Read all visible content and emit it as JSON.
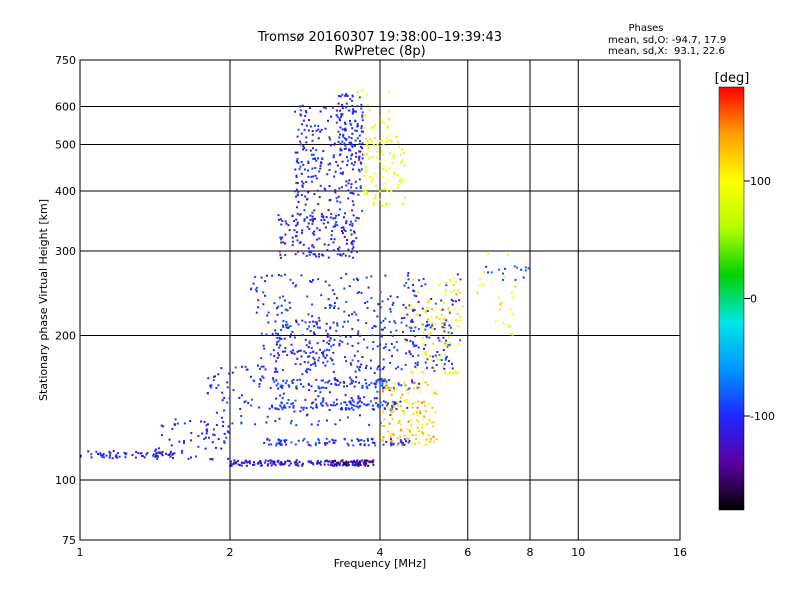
{
  "title": {
    "line1": "Tromsø 20160307 19:38:00–19:39:43",
    "line2": "RwPretec (8p)"
  },
  "phases_box": {
    "heading": "Phases",
    "line_o": "mean, sd,O: -94.7, 17.9",
    "line_x": "mean, sd,X:  93.1, 22.6"
  },
  "colorbar": {
    "label": "[deg]",
    "ticks": [
      {
        "value": 100,
        "label": "100"
      },
      {
        "value": 0,
        "label": "0"
      },
      {
        "value": -100,
        "label": "-100"
      }
    ],
    "range": [
      -180,
      180
    ],
    "colors": [
      "#000000",
      "#5a00a0",
      "#1e28ff",
      "#0096ff",
      "#00e6e6",
      "#00d200",
      "#b4ff00",
      "#ffff00",
      "#ffa000",
      "#ff0000"
    ]
  },
  "chart_data": {
    "type": "scatter",
    "xlabel": "Frequency [MHz]",
    "ylabel": "Stationary phase Virtual Height [km]",
    "x_scale": "log",
    "y_scale": "log",
    "xlim": [
      1,
      16
    ],
    "ylim": [
      75,
      750
    ],
    "x_ticks": [
      {
        "value": 1,
        "label": "1"
      },
      {
        "value": 2,
        "label": "2"
      },
      {
        "value": 4,
        "label": "4"
      },
      {
        "value": 6,
        "label": "6"
      },
      {
        "value": 8,
        "label": "8"
      },
      {
        "value": 10,
        "label": "10"
      },
      {
        "value": 16,
        "label": "16"
      }
    ],
    "y_ticks": [
      {
        "value": 75,
        "label": "75"
      },
      {
        "value": 100,
        "label": "100"
      },
      {
        "value": 200,
        "label": "200"
      },
      {
        "value": 300,
        "label": "300"
      },
      {
        "value": 400,
        "label": "400"
      },
      {
        "value": 500,
        "label": "500"
      },
      {
        "value": 600,
        "label": "600"
      },
      {
        "value": 750,
        "label": "750"
      }
    ],
    "grid": true,
    "color_variable": "phase [deg]",
    "clusters": [
      {
        "f": [
          1.0,
          1.55
        ],
        "h": [
          111,
          115
        ],
        "phase": -110,
        "n": 60
      },
      {
        "f": [
          1.4,
          2.0
        ],
        "h": [
          110,
          135
        ],
        "phase": -105,
        "n": 70
      },
      {
        "f": [
          2.0,
          3.8
        ],
        "h": [
          107,
          110
        ],
        "phase": -115,
        "n": 150
      },
      {
        "f": [
          3.2,
          3.9
        ],
        "h": [
          107,
          110
        ],
        "phase": -150,
        "n": 40
      },
      {
        "f": [
          1.8,
          4.2
        ],
        "h": [
          130,
          175
        ],
        "phase": -100,
        "n": 180
      },
      {
        "f": [
          2.3,
          4.6
        ],
        "h": [
          118,
          122
        ],
        "phase": -95,
        "n": 90
      },
      {
        "f": [
          2.4,
          4.6
        ],
        "h": [
          140,
          146
        ],
        "phase": -95,
        "n": 90
      },
      {
        "f": [
          2.4,
          4.8
        ],
        "h": [
          155,
          162
        ],
        "phase": -95,
        "n": 90
      },
      {
        "f": [
          2.3,
          5.6
        ],
        "h": [
          170,
          215
        ],
        "phase": -95,
        "n": 220
      },
      {
        "f": [
          2.2,
          5.0
        ],
        "h": [
          215,
          270
        ],
        "phase": -100,
        "n": 120
      },
      {
        "f": [
          2.4,
          3.2
        ],
        "h": [
          175,
          215
        ],
        "phase": -110,
        "n": 60
      },
      {
        "f": [
          4.0,
          5.2
        ],
        "h": [
          118,
          160
        ],
        "phase": 110,
        "n": 90
      },
      {
        "f": [
          4.0,
          5.2
        ],
        "h": [
          118,
          160
        ],
        "phase": 140,
        "n": 40
      },
      {
        "f": [
          4.6,
          5.8
        ],
        "h": [
          165,
          270
        ],
        "phase": 95,
        "n": 70
      },
      {
        "f": [
          4.5,
          5.8
        ],
        "h": [
          165,
          270
        ],
        "phase": -100,
        "n": 50
      },
      {
        "f": [
          5.0,
          6.0
        ],
        "h": [
          180,
          260
        ],
        "phase": 125,
        "n": 20
      },
      {
        "f": [
          2.5,
          3.6
        ],
        "h": [
          290,
          360
        ],
        "phase": -110,
        "n": 140
      },
      {
        "f": [
          2.7,
          3.7
        ],
        "h": [
          340,
          610
        ],
        "phase": -105,
        "n": 250
      },
      {
        "f": [
          3.3,
          3.7
        ],
        "h": [
          460,
          640
        ],
        "phase": -100,
        "n": 80
      },
      {
        "f": [
          3.7,
          4.5
        ],
        "h": [
          370,
          520
        ],
        "phase": 90,
        "n": 90
      },
      {
        "f": [
          3.6,
          4.2
        ],
        "h": [
          540,
          650
        ],
        "phase": 90,
        "n": 20
      },
      {
        "f": [
          6.0,
          7.5
        ],
        "h": [
          200,
          300
        ],
        "phase": 100,
        "n": 25
      },
      {
        "f": [
          6.5,
          8.0
        ],
        "h": [
          260,
          280
        ],
        "phase": -90,
        "n": 15
      }
    ]
  }
}
